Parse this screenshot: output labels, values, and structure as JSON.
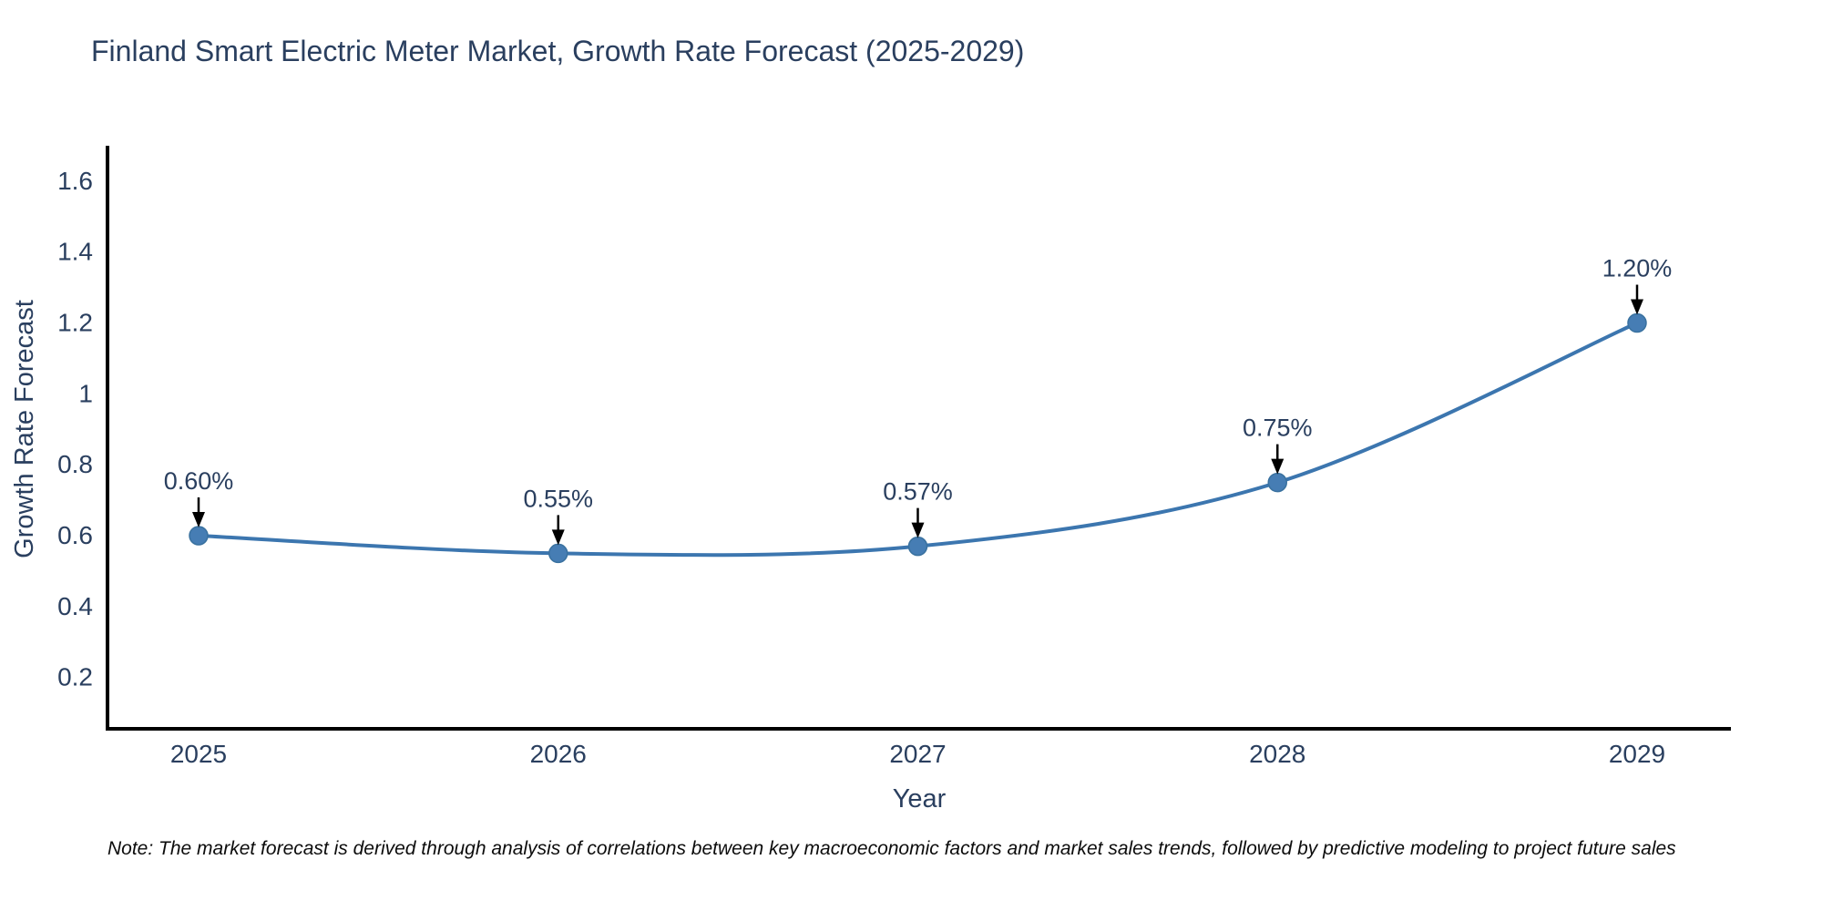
{
  "header": {
    "title": "Finland Smart Electric Meter Market, Growth Rate Forecast (2025-2029)"
  },
  "footnote": {
    "text": "Note: The market forecast is derived through analysis of correlations between key macroeconomic factors and market sales trends, followed by predictive modeling to project future sales"
  },
  "chart_data": {
    "type": "line",
    "title": "Finland Smart Electric Meter Market, Growth Rate Forecast (2025-2029)",
    "xlabel": "Year",
    "ylabel": "Growth Rate Forecast",
    "categories": [
      "2025",
      "2026",
      "2027",
      "2028",
      "2029"
    ],
    "values": [
      0.6,
      0.55,
      0.57,
      0.75,
      1.2
    ],
    "point_labels": [
      "0.60%",
      "0.55%",
      "0.57%",
      "0.75%",
      "1.20%"
    ],
    "yticks": {
      "values": [
        0.2,
        0.4,
        0.6,
        0.8,
        1.0,
        1.2,
        1.4,
        1.6
      ],
      "labels": [
        "0.2",
        "0.4",
        "0.6",
        "0.8",
        "1",
        "1.2",
        "1.4",
        "1.6"
      ]
    },
    "ylim": [
      0.055,
      1.7
    ],
    "line_shape": "spline",
    "grid": false,
    "legend": "none",
    "annotation_arrows": true,
    "colors": {
      "line": "#3c76af",
      "marker": "#467db4",
      "marker_edge": "#39719f",
      "axis": "#000000",
      "tick_text": "#2a3f5f",
      "title_text": "#2a3f5f",
      "annotation_text": "#2a3f5f",
      "arrow": "#000000",
      "background": "#ffffff"
    }
  }
}
